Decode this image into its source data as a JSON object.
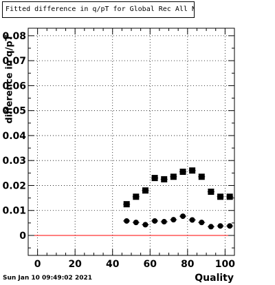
{
  "title": "Fitted difference in q/pT  for Global Rec All NoHits",
  "datestamp": "Sun Jan 10 09:49:02 2021",
  "chart_data": {
    "type": "scatter",
    "xlabel": "Quality",
    "ylabel": "difference in q/pT",
    "xlim": [
      -5,
      105
    ],
    "ylim": [
      -0.008,
      0.083
    ],
    "grid": true,
    "xticks": [
      0,
      20,
      40,
      60,
      80,
      100
    ],
    "xtick_labels": [
      "0",
      "20",
      "40",
      "60",
      "80",
      "100"
    ],
    "yticks": [
      0,
      0.01,
      0.02,
      0.03,
      0.04,
      0.05,
      0.06,
      0.07,
      0.08
    ],
    "ytick_labels": [
      "0",
      "0.01",
      "0.02",
      "0.03",
      "0.04",
      "0.05",
      "0.06",
      "0.07",
      "0.08"
    ],
    "reference_line": {
      "y": 0,
      "color": "#ff0000"
    },
    "series": [
      {
        "marker": "square",
        "color": "#000000",
        "x": [
          47.5,
          52.5,
          57.5,
          62.5,
          67.5,
          72.5,
          77.5,
          82.5,
          87.5,
          92.5,
          97.5,
          102.5
        ],
        "y": [
          0.0125,
          0.0155,
          0.018,
          0.023,
          0.0225,
          0.0235,
          0.0255,
          0.026,
          0.0235,
          0.0175,
          0.0155,
          0.0155
        ]
      },
      {
        "marker": "circle",
        "color": "#000000",
        "x": [
          47.5,
          52.5,
          57.5,
          62.5,
          67.5,
          72.5,
          77.5,
          82.5,
          87.5,
          92.5,
          97.5,
          102.5
        ],
        "y": [
          0.0058,
          0.0052,
          0.0043,
          0.0058,
          0.0055,
          0.0063,
          0.0077,
          0.0062,
          0.0052,
          0.0035,
          0.0038,
          0.0038
        ]
      }
    ]
  }
}
